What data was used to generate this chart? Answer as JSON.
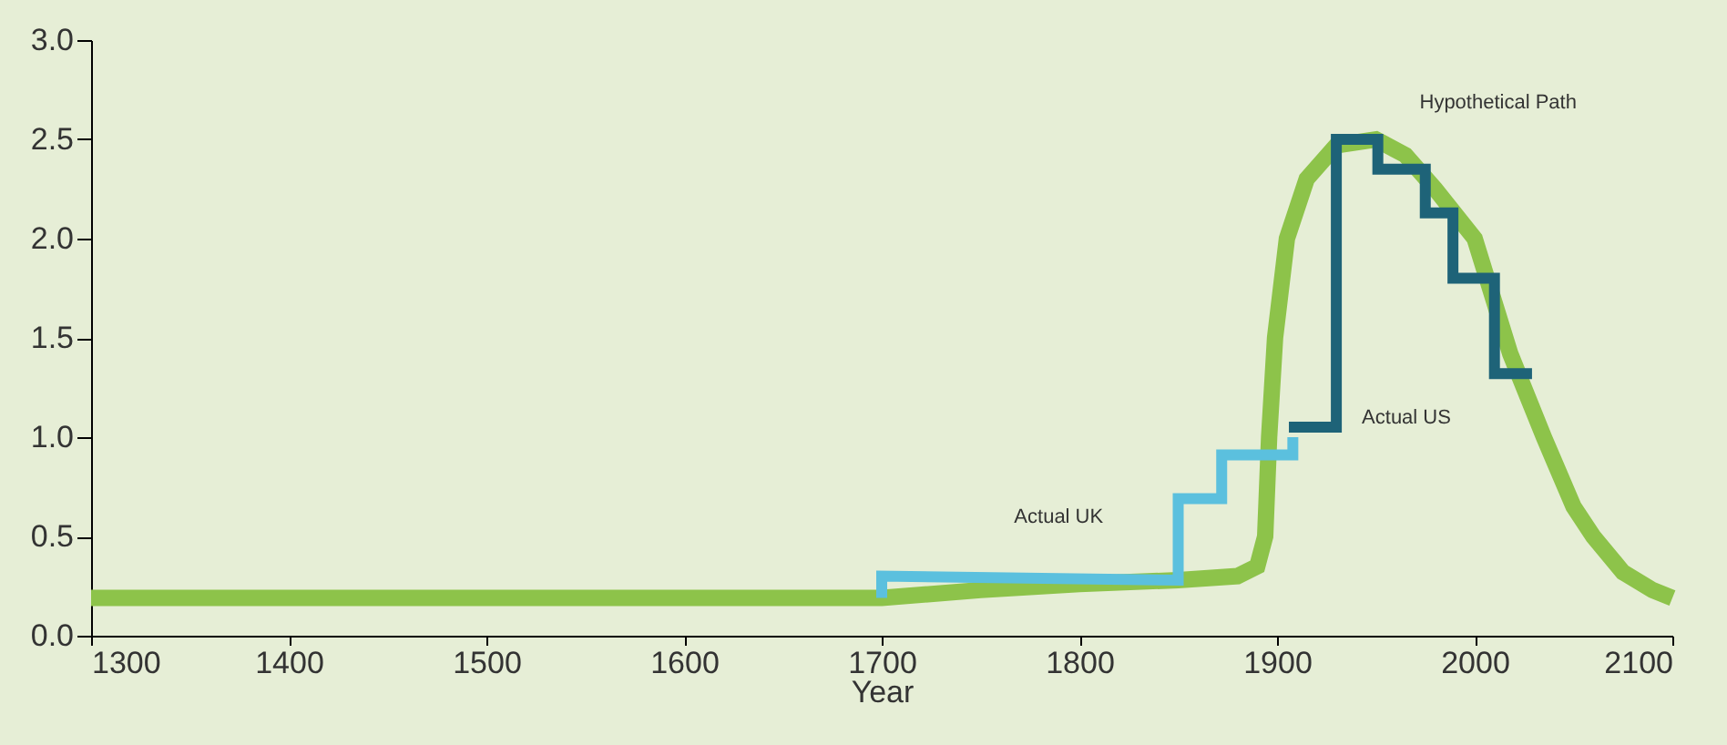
{
  "chart_data": {
    "type": "line",
    "xlabel": "Year",
    "xlim": [
      1300,
      2100
    ],
    "xticks": [
      1300,
      1400,
      1500,
      1600,
      1700,
      1800,
      1900,
      2000,
      2100
    ],
    "ylim": [
      0,
      3
    ],
    "yticks": [
      {
        "value": 0,
        "label": "0.0"
      },
      {
        "value": 0.5,
        "label": "0.5"
      },
      {
        "value": 1,
        "label": "1.0"
      },
      {
        "value": 1.5,
        "label": "1.5"
      },
      {
        "value": 2,
        "label": "2.0"
      },
      {
        "value": 2.5,
        "label": "2.5"
      },
      {
        "value": 3,
        "label": "3.0"
      }
    ],
    "grid": false,
    "marker": "none",
    "line_style": "solid",
    "series": [
      {
        "name": "Hypothetical Path",
        "color": "#8dc34a",
        "x": [
          1300,
          1700,
          1750,
          1800,
          1850,
          1880,
          1890,
          1894,
          1896,
          1899,
          1905,
          1915,
          1930,
          1950,
          1965,
          1980,
          2000,
          2018,
          2035,
          2050,
          2060,
          2075,
          2090,
          2100
        ],
        "values": [
          0.19,
          0.19,
          0.23,
          0.26,
          0.28,
          0.3,
          0.35,
          0.5,
          1.0,
          1.5,
          2.0,
          2.3,
          2.47,
          2.5,
          2.42,
          2.25,
          2.0,
          1.42,
          1.0,
          0.65,
          0.5,
          0.32,
          0.23,
          0.19
        ]
      },
      {
        "name": "Actual UK",
        "color": "#5bc0de",
        "x": [
          1700,
          1700,
          1850,
          1850,
          1872,
          1872,
          1908,
          1908
        ],
        "values": [
          0.19,
          0.3,
          0.28,
          0.69,
          0.69,
          0.91,
          0.91,
          1.0
        ]
      },
      {
        "name": "Actual US",
        "color": "#1e6378",
        "x": [
          1906,
          1930,
          1930,
          1951,
          1951,
          1975,
          1975,
          1989,
          1989,
          2010,
          2010,
          2029
        ],
        "values": [
          1.05,
          1.05,
          2.5,
          2.5,
          2.35,
          2.35,
          2.13,
          2.13,
          1.8,
          1.8,
          1.32,
          1.32
        ]
      }
    ]
  }
}
